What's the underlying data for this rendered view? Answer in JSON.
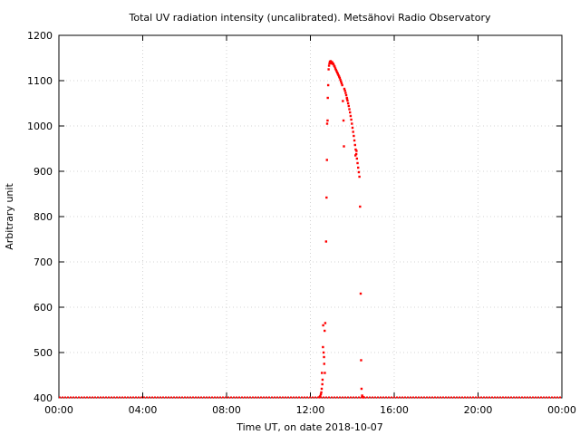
{
  "chart_data": {
    "type": "scatter",
    "title": "Total UV radiation intensity (uncalibrated). Metsähovi Radio Observatory",
    "xlabel": "Time UT, on date 2018-10-07",
    "ylabel": "Arbitrary unit",
    "x_unit": "hours UT",
    "xlim": [
      0,
      24
    ],
    "ylim": [
      400,
      1200
    ],
    "x_ticks": [
      {
        "value": 0,
        "label": "00:00"
      },
      {
        "value": 4,
        "label": "04:00"
      },
      {
        "value": 8,
        "label": "08:00"
      },
      {
        "value": 12,
        "label": "12:00"
      },
      {
        "value": 16,
        "label": "16:00"
      },
      {
        "value": 20,
        "label": "20:00"
      },
      {
        "value": 24,
        "label": "00:00"
      }
    ],
    "y_ticks": [
      400,
      500,
      600,
      700,
      800,
      900,
      1000,
      1100,
      1200
    ],
    "grid": true,
    "marker_color": "#ff0000",
    "baseline": {
      "value": 401,
      "x_start": 0,
      "x_end": 24
    },
    "series": [
      {
        "values": [
          [
            12.44,
            402
          ],
          [
            12.47,
            404
          ],
          [
            12.5,
            408
          ],
          [
            12.52,
            412
          ],
          [
            12.54,
            420
          ],
          [
            12.55,
            455
          ],
          [
            12.57,
            430
          ],
          [
            12.58,
            440
          ],
          [
            12.6,
            512
          ],
          [
            12.61,
            560
          ],
          [
            12.63,
            500
          ],
          [
            12.65,
            490
          ],
          [
            12.66,
            475
          ],
          [
            12.68,
            548
          ],
          [
            12.69,
            455
          ],
          [
            12.71,
            565
          ],
          [
            12.75,
            745
          ],
          [
            12.77,
            842
          ],
          [
            12.79,
            925
          ],
          [
            12.8,
            1005
          ],
          [
            12.82,
            1012
          ],
          [
            12.83,
            1062
          ],
          [
            12.85,
            1090
          ],
          [
            12.87,
            1125
          ],
          [
            12.89,
            1133
          ],
          [
            12.91,
            1138
          ],
          [
            12.93,
            1142
          ],
          [
            12.95,
            1141
          ],
          [
            12.97,
            1143
          ],
          [
            12.99,
            1140
          ],
          [
            13.01,
            1138
          ],
          [
            13.03,
            1141
          ],
          [
            13.05,
            1139
          ],
          [
            13.07,
            1137
          ],
          [
            13.1,
            1137
          ],
          [
            13.13,
            1133
          ],
          [
            13.16,
            1131
          ],
          [
            13.19,
            1127
          ],
          [
            13.22,
            1124
          ],
          [
            13.25,
            1121
          ],
          [
            13.28,
            1118
          ],
          [
            13.31,
            1115
          ],
          [
            13.34,
            1112
          ],
          [
            13.37,
            1109
          ],
          [
            13.4,
            1106
          ],
          [
            13.43,
            1102
          ],
          [
            13.46,
            1098
          ],
          [
            13.49,
            1094
          ],
          [
            13.52,
            1090
          ],
          [
            13.55,
            1055
          ],
          [
            13.58,
            1012
          ],
          [
            13.6,
            955
          ],
          [
            13.62,
            1082
          ],
          [
            13.65,
            1078
          ],
          [
            13.68,
            1073
          ],
          [
            13.71,
            1068
          ],
          [
            13.74,
            1062
          ],
          [
            13.77,
            1056
          ],
          [
            13.8,
            1050
          ],
          [
            13.83,
            1044
          ],
          [
            13.86,
            1037
          ],
          [
            13.89,
            1030
          ],
          [
            13.92,
            1022
          ],
          [
            13.95,
            1014
          ],
          [
            13.98,
            1005
          ],
          [
            14.01,
            996
          ],
          [
            14.04,
            987
          ],
          [
            14.07,
            978
          ],
          [
            14.1,
            968
          ],
          [
            14.13,
            958
          ],
          [
            14.16,
            948
          ],
          [
            14.19,
            938
          ],
          [
            14.22,
            928
          ],
          [
            14.25,
            918
          ],
          [
            14.28,
            908
          ],
          [
            14.31,
            898
          ],
          [
            14.34,
            888
          ],
          [
            14.37,
            822
          ],
          [
            14.4,
            630
          ],
          [
            14.42,
            483
          ],
          [
            14.44,
            420
          ],
          [
            14.47,
            405
          ],
          [
            14.5,
            402
          ],
          [
            14.53,
            401
          ],
          [
            14.15,
            935
          ],
          [
            14.2,
            945
          ],
          [
            13.75,
            1060
          ]
        ]
      }
    ]
  }
}
